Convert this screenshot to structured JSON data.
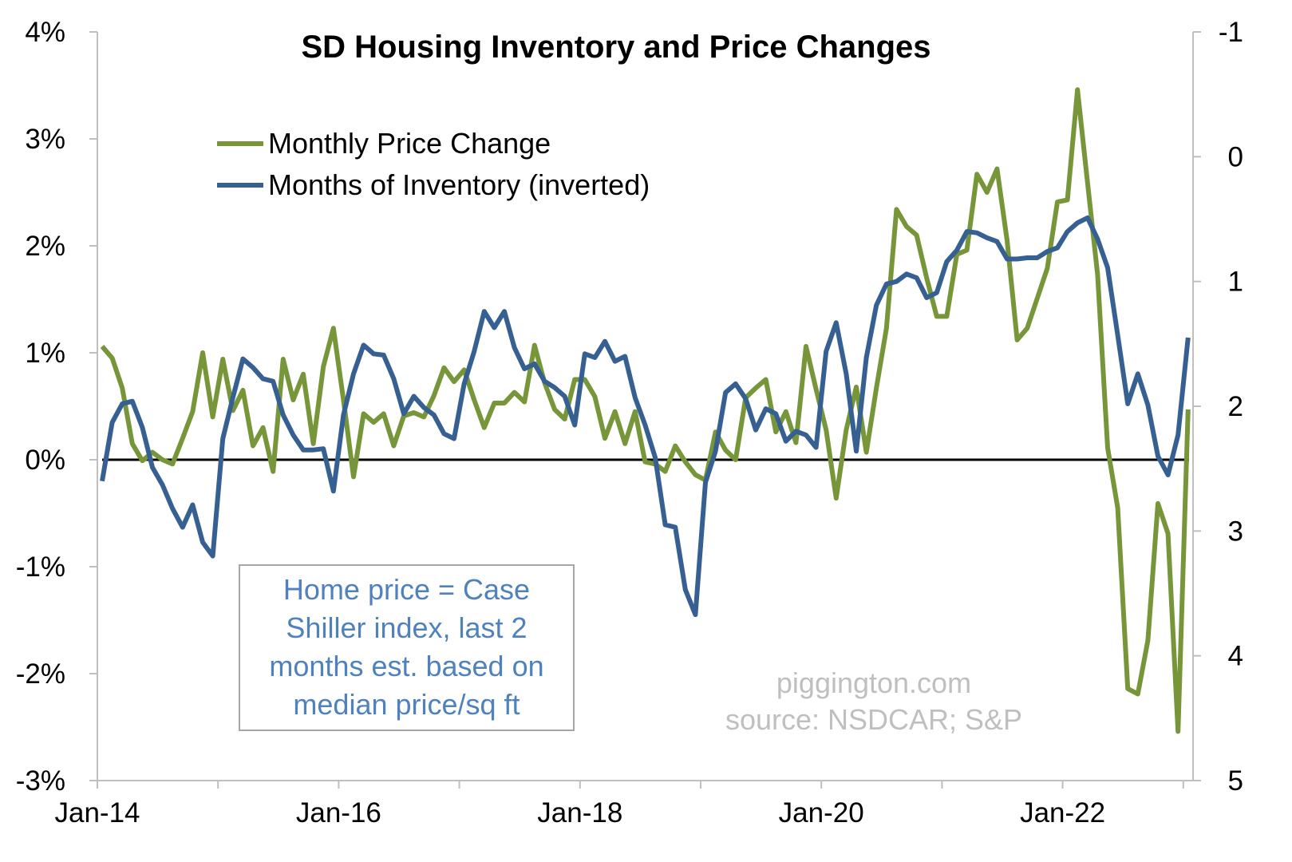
{
  "chart_data": {
    "type": "line",
    "title": "SD Housing Inventory and Price Changes",
    "x_start": "Jan-14",
    "x_tick_labels": [
      "Jan-14",
      "Jan-16",
      "Jan-18",
      "Jan-20",
      "Jan-22"
    ],
    "y_left": {
      "ticks": [
        "4%",
        "3%",
        "2%",
        "1%",
        "0%",
        "-1%",
        "-2%",
        "-3%"
      ],
      "range": [
        -3,
        4
      ],
      "unit": "%"
    },
    "y_right": {
      "ticks": [
        "-1",
        "0",
        "1",
        "2",
        "3",
        "4",
        "5"
      ],
      "range": [
        -1,
        5
      ],
      "inverted": true
    },
    "zero_line": true,
    "grid": false,
    "legend_position": "top-left",
    "series": [
      {
        "name": "Monthly Price Change",
        "axis": "left",
        "color": "#77963a",
        "values": [
          1.06,
          0.95,
          0.67,
          0.15,
          -0.01,
          0.07,
          0.0,
          -0.04,
          0.2,
          0.45,
          1.0,
          0.4,
          0.94,
          0.46,
          0.65,
          0.13,
          0.3,
          -0.11,
          0.94,
          0.56,
          0.8,
          0.15,
          0.87,
          1.23,
          0.56,
          -0.16,
          0.43,
          0.35,
          0.43,
          0.13,
          0.41,
          0.44,
          0.4,
          0.6,
          0.86,
          0.73,
          0.84,
          0.56,
          0.3,
          0.53,
          0.53,
          0.63,
          0.54,
          1.07,
          0.72,
          0.47,
          0.38,
          0.75,
          0.75,
          0.59,
          0.2,
          0.45,
          0.15,
          0.45,
          -0.02,
          -0.04,
          -0.11,
          0.13,
          -0.02,
          -0.14,
          -0.19,
          0.26,
          0.09,
          0.0,
          0.58,
          0.67,
          0.75,
          0.26,
          0.45,
          0.16,
          1.06,
          0.66,
          0.28,
          -0.36,
          0.28,
          0.68,
          0.07,
          0.67,
          1.23,
          2.34,
          2.18,
          2.1,
          1.7,
          1.34,
          1.34,
          1.92,
          1.96,
          2.67,
          2.5,
          2.72,
          2.05,
          1.12,
          1.23,
          1.51,
          1.79,
          2.41,
          2.43,
          3.46,
          2.59,
          1.73,
          0.11,
          -0.45,
          -2.14,
          -2.19,
          -1.69,
          -0.41,
          -0.69,
          -2.54,
          0.47
        ]
      },
      {
        "name": "Months of Inventory (inverted)",
        "axis": "right",
        "color": "#376092",
        "values": [
          2.6,
          2.13,
          1.98,
          1.96,
          2.17,
          2.49,
          2.63,
          2.82,
          2.97,
          2.79,
          3.09,
          3.2,
          2.26,
          1.93,
          1.62,
          1.69,
          1.78,
          1.8,
          2.07,
          2.23,
          2.35,
          2.35,
          2.34,
          2.68,
          2.07,
          1.74,
          1.51,
          1.58,
          1.59,
          1.78,
          2.06,
          1.92,
          2.01,
          2.07,
          2.22,
          2.26,
          1.82,
          1.56,
          1.24,
          1.37,
          1.24,
          1.53,
          1.7,
          1.66,
          1.8,
          1.85,
          1.92,
          2.15,
          1.58,
          1.61,
          1.48,
          1.64,
          1.6,
          1.93,
          2.15,
          2.41,
          2.95,
          2.97,
          3.47,
          3.67,
          2.61,
          2.36,
          1.89,
          1.82,
          1.94,
          2.19,
          2.02,
          2.06,
          2.28,
          2.2,
          2.23,
          2.33,
          1.56,
          1.33,
          1.74,
          2.36,
          1.61,
          1.19,
          1.02,
          1.0,
          0.94,
          0.97,
          1.13,
          1.09,
          0.84,
          0.75,
          0.6,
          0.61,
          0.65,
          0.68,
          0.82,
          0.82,
          0.81,
          0.81,
          0.76,
          0.73,
          0.6,
          0.53,
          0.49,
          0.66,
          0.89,
          1.43,
          1.98,
          1.74,
          1.99,
          2.4,
          2.55,
          2.23,
          1.45
        ]
      }
    ],
    "annotation": {
      "lines": [
        "Home price = Case",
        "Shiller index, last 2",
        "months est. based on",
        "median price/sq ft"
      ],
      "color": "#4f81bd"
    },
    "watermark": {
      "lines": [
        "piggington.com",
        "source: NSDCAR; S&P"
      ]
    }
  }
}
